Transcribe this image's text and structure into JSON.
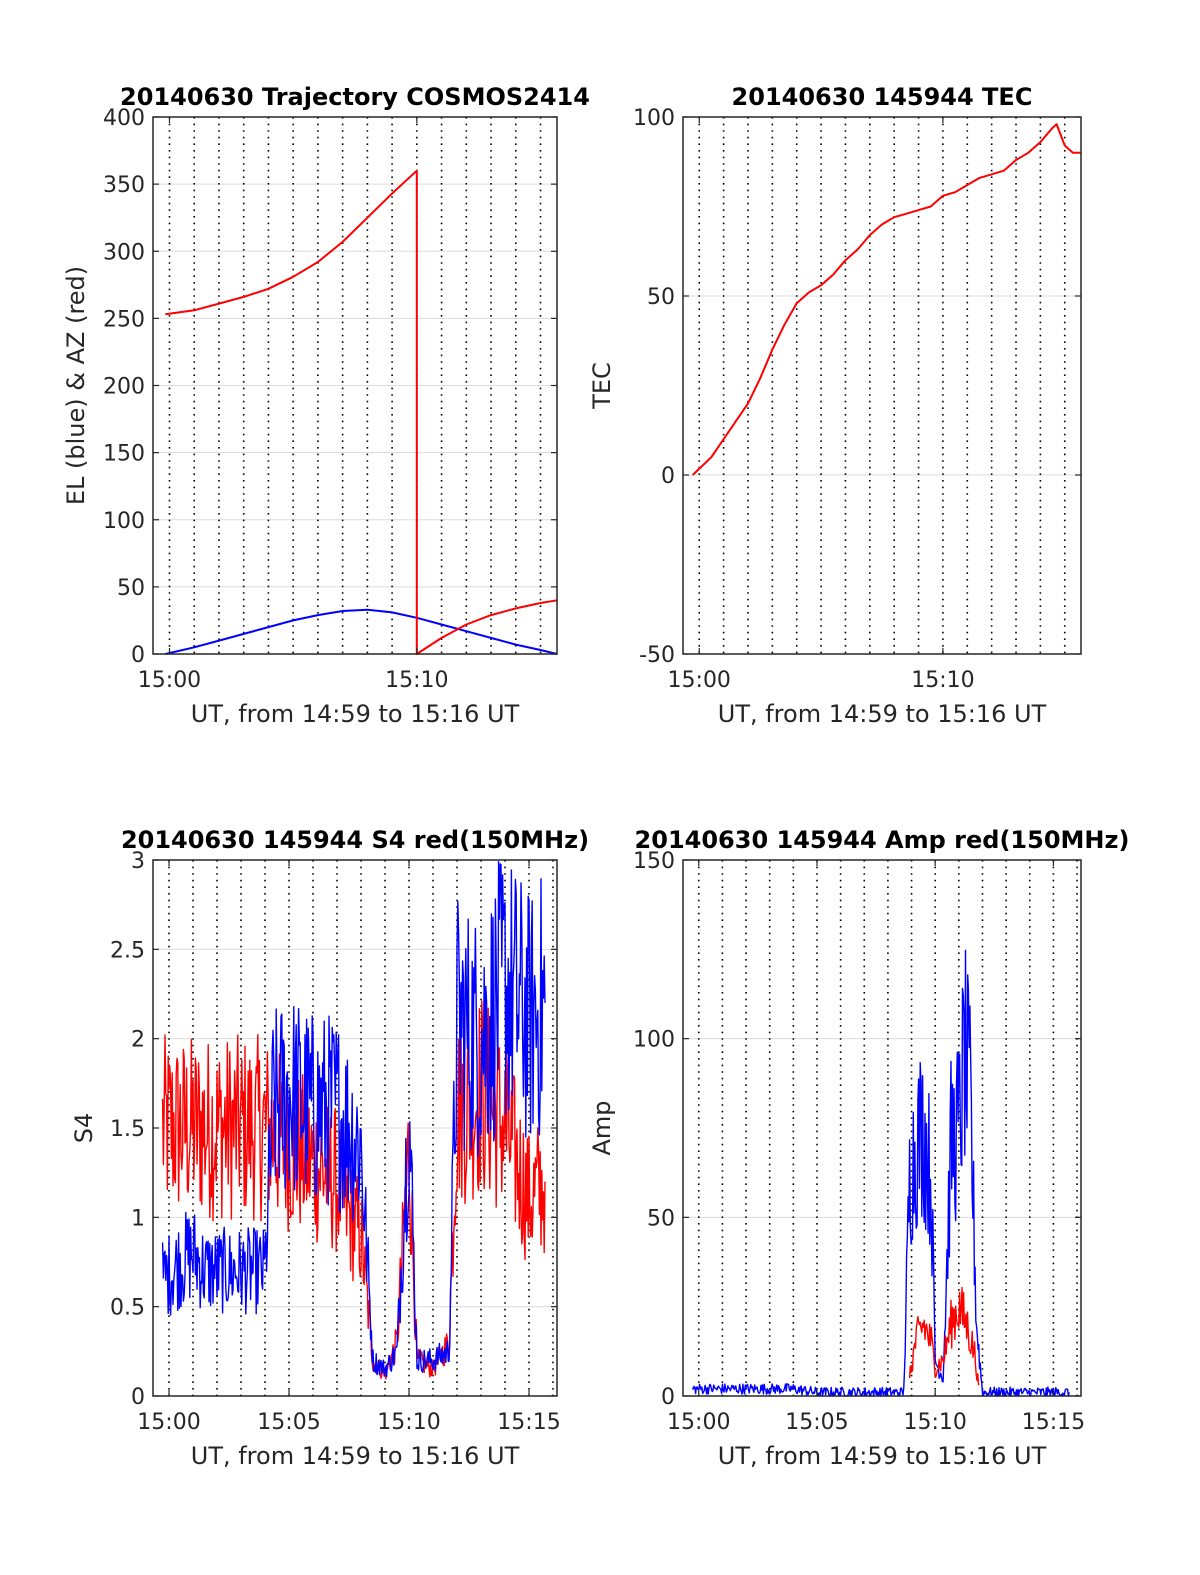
{
  "colors": {
    "el": "#0000ff",
    "az": "#ff0000",
    "red": "#ff0000",
    "blue": "#0000ff"
  },
  "chart_data": [
    {
      "id": "traj",
      "type": "line",
      "title": "20140630 Trajectory COSMOS2414",
      "xlabel": "UT, from 14:59 to 15:16 UT",
      "ylabel": "EL (blue) & AZ (red)",
      "xlim": [
        "14:59:20",
        "15:15:40"
      ],
      "ylim": [
        0,
        400
      ],
      "yticks": [
        0,
        50,
        100,
        150,
        200,
        250,
        300,
        350,
        400
      ],
      "xticks": [
        {
          "t": "15:00",
          "label": "15:00"
        },
        {
          "t": "15:10",
          "label": "15:10"
        }
      ],
      "series": [
        {
          "color": "blue",
          "points": [
            [
              "14:59:50",
              0
            ],
            [
              "15:01:00",
              5
            ],
            [
              "15:02:00",
              10
            ],
            [
              "15:03:00",
              15
            ],
            [
              "15:04:00",
              20
            ],
            [
              "15:05:00",
              25
            ],
            [
              "15:06:00",
              29
            ],
            [
              "15:07:00",
              32
            ],
            [
              "15:08:00",
              33
            ],
            [
              "15:09:00",
              31
            ],
            [
              "15:10:00",
              27
            ],
            [
              "15:11:00",
              22
            ],
            [
              "15:12:00",
              17
            ],
            [
              "15:13:00",
              12
            ],
            [
              "15:14:00",
              7
            ],
            [
              "15:15:00",
              3
            ],
            [
              "15:15:40",
              0
            ]
          ]
        },
        {
          "color": "red",
          "points": [
            [
              "14:59:50",
              253
            ],
            [
              "15:01:00",
              256
            ],
            [
              "15:02:00",
              261
            ],
            [
              "15:03:00",
              266
            ],
            [
              "15:04:00",
              272
            ],
            [
              "15:05:00",
              281
            ],
            [
              "15:06:00",
              292
            ],
            [
              "15:07:00",
              307
            ],
            [
              "15:08:00",
              325
            ],
            [
              "15:09:00",
              343
            ],
            [
              "15:10:00",
              360
            ],
            [
              "15:10:00",
              0
            ],
            [
              "15:11:00",
              12
            ],
            [
              "15:12:00",
              22
            ],
            [
              "15:13:00",
              29
            ],
            [
              "15:14:00",
              34
            ],
            [
              "15:15:00",
              38
            ],
            [
              "15:15:40",
              40
            ]
          ]
        }
      ]
    },
    {
      "id": "tec",
      "type": "line",
      "title": "20140630 145944 TEC",
      "xlabel": "UT, from 14:59 to 15:16 UT",
      "ylabel": "TEC",
      "xlim": [
        "14:59:20",
        "15:15:40"
      ],
      "ylim": [
        -50,
        100
      ],
      "yticks": [
        -50,
        0,
        50,
        100
      ],
      "xticks": [
        {
          "t": "15:00",
          "label": "15:00"
        },
        {
          "t": "15:10",
          "label": "15:10"
        }
      ],
      "series": [
        {
          "color": "red",
          "points": [
            [
              "14:59:44",
              0
            ],
            [
              "15:00:30",
              5
            ],
            [
              "15:01:00",
              10
            ],
            [
              "15:01:30",
              15
            ],
            [
              "15:02:00",
              20
            ],
            [
              "15:02:30",
              27
            ],
            [
              "15:03:00",
              35
            ],
            [
              "15:03:30",
              42
            ],
            [
              "15:04:00",
              48
            ],
            [
              "15:04:30",
              51
            ],
            [
              "15:05:00",
              53
            ],
            [
              "15:05:30",
              56
            ],
            [
              "15:06:00",
              60
            ],
            [
              "15:06:30",
              63
            ],
            [
              "15:07:00",
              67
            ],
            [
              "15:07:30",
              70
            ],
            [
              "15:08:00",
              72
            ],
            [
              "15:08:30",
              73
            ],
            [
              "15:09:00",
              74
            ],
            [
              "15:09:30",
              75
            ],
            [
              "15:10:00",
              78
            ],
            [
              "15:10:30",
              79
            ],
            [
              "15:11:00",
              81
            ],
            [
              "15:11:30",
              83
            ],
            [
              "15:12:00",
              84
            ],
            [
              "15:12:30",
              85
            ],
            [
              "15:13:00",
              88
            ],
            [
              "15:13:30",
              90
            ],
            [
              "15:14:00",
              93
            ],
            [
              "15:14:30",
              97
            ],
            [
              "15:14:40",
              98
            ],
            [
              "15:15:00",
              92
            ],
            [
              "15:15:20",
              90
            ],
            [
              "15:15:40",
              90
            ]
          ]
        }
      ]
    },
    {
      "id": "s4",
      "type": "line",
      "title": "20140630 145944 S4 red(150MHz)",
      "xlabel": "UT, from 14:59 to 15:16 UT",
      "ylabel": "S4",
      "xlim": [
        "14:59:20",
        "15:16:10"
      ],
      "ylim": [
        0,
        3
      ],
      "yticks": [
        0,
        0.5,
        1,
        1.5,
        2,
        2.5,
        3
      ],
      "ytick_labels": [
        "0",
        "0.5",
        "1",
        "1.5",
        "2",
        "2.5",
        "3"
      ],
      "xticks": [
        {
          "t": "15:00",
          "label": "15:00"
        },
        {
          "t": "15:05",
          "label": "15:05"
        },
        {
          "t": "15:10",
          "label": "15:10"
        },
        {
          "t": "15:15",
          "label": "15:15"
        }
      ],
      "series": [
        {
          "color": "red",
          "noisy": true,
          "points": [
            [
              "14:59:44",
              1.5
            ],
            [
              "15:00:30",
              1.5
            ],
            [
              "15:01:30",
              1.5
            ],
            [
              "15:02:30",
              1.5
            ],
            [
              "15:03:30",
              1.5
            ],
            [
              "15:04:00",
              1.5
            ],
            [
              "15:05:00",
              1.4
            ],
            [
              "15:06:00",
              1.3
            ],
            [
              "15:07:00",
              1.2
            ],
            [
              "15:07:30",
              1.0
            ],
            [
              "15:08:00",
              0.9
            ],
            [
              "15:08:30",
              0.2
            ],
            [
              "15:09:00",
              0.12
            ],
            [
              "15:09:30",
              0.3
            ],
            [
              "15:10:00",
              1.4
            ],
            [
              "15:10:20",
              0.2
            ],
            [
              "15:11:00",
              0.15
            ],
            [
              "15:11:40",
              0.3
            ],
            [
              "15:12:00",
              1.6
            ],
            [
              "15:13:00",
              1.7
            ],
            [
              "15:14:00",
              1.5
            ],
            [
              "15:15:00",
              1.1
            ],
            [
              "15:15:40",
              1.2
            ]
          ]
        },
        {
          "color": "blue",
          "noisy": true,
          "points": [
            [
              "14:59:44",
              0.65
            ],
            [
              "15:00:30",
              0.75
            ],
            [
              "15:01:00",
              0.8
            ],
            [
              "15:01:30",
              0.7
            ],
            [
              "15:02:00",
              0.7
            ],
            [
              "15:03:00",
              0.7
            ],
            [
              "15:04:00",
              0.7
            ],
            [
              "15:04:20",
              1.6
            ],
            [
              "15:05:00",
              1.7
            ],
            [
              "15:06:00",
              1.6
            ],
            [
              "15:07:00",
              1.6
            ],
            [
              "15:07:30",
              1.5
            ],
            [
              "15:08:00",
              1.4
            ],
            [
              "15:08:30",
              0.2
            ],
            [
              "15:09:00",
              0.15
            ],
            [
              "15:09:30",
              0.25
            ],
            [
              "15:10:00",
              1.6
            ],
            [
              "15:10:20",
              0.2
            ],
            [
              "15:11:00",
              0.2
            ],
            [
              "15:11:40",
              0.25
            ],
            [
              "15:12:00",
              2.1
            ],
            [
              "15:13:00",
              2.0
            ],
            [
              "15:14:00",
              2.3
            ],
            [
              "15:15:00",
              2.1
            ],
            [
              "15:15:40",
              2.2
            ]
          ]
        }
      ]
    },
    {
      "id": "amp",
      "type": "line",
      "title": "20140630 145944 Amp red(150MHz)",
      "xlabel": "UT, from 14:59 to 15:16 UT",
      "ylabel": "Amp",
      "xlim": [
        "14:59:20",
        "15:16:10"
      ],
      "ylim": [
        0,
        150
      ],
      "yticks": [
        0,
        50,
        100,
        150
      ],
      "xticks": [
        {
          "t": "15:00",
          "label": "15:00"
        },
        {
          "t": "15:05",
          "label": "15:05"
        },
        {
          "t": "15:10",
          "label": "15:10"
        },
        {
          "t": "15:15",
          "label": "15:15"
        }
      ],
      "series": [
        {
          "color": "blue",
          "noisy": true,
          "points": [
            [
              "14:59:44",
              2
            ],
            [
              "15:02:00",
              2
            ],
            [
              "15:04:00",
              2
            ],
            [
              "15:05:00",
              1
            ],
            [
              "15:07:00",
              1
            ],
            [
              "15:08:40",
              1
            ],
            [
              "15:08:55",
              60
            ],
            [
              "15:09:10",
              70
            ],
            [
              "15:09:30",
              75
            ],
            [
              "15:09:50",
              60
            ],
            [
              "15:10:00",
              10
            ],
            [
              "15:10:20",
              5
            ],
            [
              "15:10:40",
              70
            ],
            [
              "15:11:00",
              75
            ],
            [
              "15:11:15",
              95
            ],
            [
              "15:11:30",
              80
            ],
            [
              "15:11:45",
              20
            ],
            [
              "15:12:00",
              1
            ],
            [
              "15:13:00",
              1
            ],
            [
              "15:14:00",
              1
            ],
            [
              "15:15:00",
              1
            ],
            [
              "15:15:40",
              1
            ]
          ]
        },
        {
          "color": "red",
          "noisy": true,
          "points": [
            [
              "15:08:55",
              5
            ],
            [
              "15:09:10",
              15
            ],
            [
              "15:09:30",
              20
            ],
            [
              "15:09:50",
              15
            ],
            [
              "15:10:00",
              8
            ],
            [
              "15:10:20",
              10
            ],
            [
              "15:10:40",
              20
            ],
            [
              "15:11:00",
              25
            ],
            [
              "15:11:20",
              20
            ],
            [
              "15:11:40",
              12
            ],
            [
              "15:11:50",
              3
            ]
          ]
        }
      ]
    }
  ]
}
